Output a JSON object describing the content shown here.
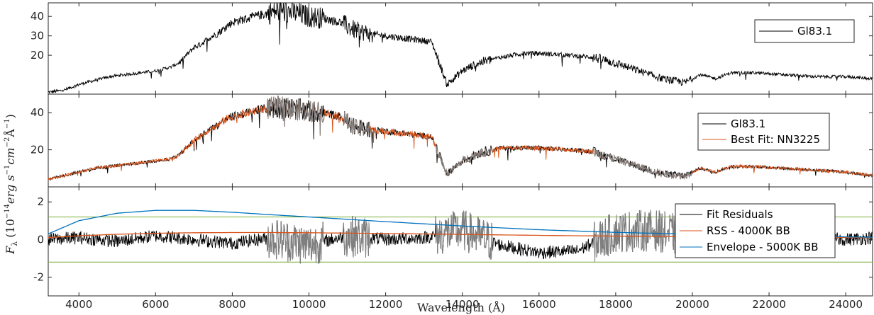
{
  "chart_data": [
    {
      "type": "line",
      "panel": "top",
      "xlim": [
        3200,
        24700
      ],
      "ylim": [
        0,
        47
      ],
      "yticks": [
        "20",
        "30",
        "40"
      ],
      "ytick_values": [
        20,
        30,
        40
      ],
      "legend_position": "top-right",
      "series": [
        {
          "name": "Gl83.1",
          "color": "#000000",
          "x": [
            3200,
            3600,
            4000,
            4400,
            4800,
            5200,
            5600,
            6000,
            6400,
            6600,
            6800,
            7000,
            7200,
            7400,
            7600,
            7800,
            8000,
            8400,
            8800,
            9200,
            9600,
            10000,
            10400,
            10800,
            11200,
            11600,
            12000,
            12400,
            12800,
            13200,
            13600,
            14000,
            14400,
            15000,
            15600,
            16000,
            16800,
            17400,
            18000,
            18600,
            19200,
            19800,
            20200,
            20600,
            21000,
            21600,
            22400,
            23200,
            24000,
            24700
          ],
          "y": [
            1,
            2,
            5,
            7,
            9,
            10,
            11,
            12,
            14,
            16,
            20,
            24,
            26,
            29,
            31,
            34,
            37,
            39,
            41,
            43,
            42,
            40,
            39,
            37,
            33,
            31,
            30,
            29,
            28,
            27,
            5,
            12,
            16,
            19,
            21,
            21,
            20,
            19,
            16,
            12,
            8,
            6,
            10,
            8,
            11,
            11,
            10,
            9,
            9,
            8
          ]
        }
      ]
    },
    {
      "type": "line",
      "panel": "middle",
      "xlim": [
        3200,
        24700
      ],
      "ylim": [
        0,
        50
      ],
      "yticks": [
        "20",
        "40"
      ],
      "ytick_values": [
        20,
        40
      ],
      "legend_position": "top-right",
      "series": [
        {
          "name": "Gl83.1",
          "color": "#000000",
          "x": [
            3200,
            3600,
            4000,
            4400,
            4800,
            5200,
            5600,
            6000,
            6400,
            6600,
            6800,
            7000,
            7200,
            7400,
            7600,
            7800,
            8000,
            8400,
            8800,
            9200,
            9600,
            10000,
            10400,
            10800,
            11200,
            11600,
            12000,
            12400,
            12800,
            13200,
            13600,
            14000,
            14400,
            15000,
            15600,
            16000,
            16800,
            17400,
            18000,
            18600,
            19200,
            19800,
            20200,
            20600,
            21000,
            21600,
            22400,
            23200,
            24000,
            24700
          ],
          "y": [
            4,
            6,
            8,
            10,
            11,
            12,
            13,
            14,
            15,
            17,
            21,
            25,
            28,
            31,
            33,
            36,
            38,
            40,
            42,
            43,
            42,
            41,
            40,
            38,
            32,
            31,
            30,
            29,
            28,
            27,
            7,
            14,
            18,
            21,
            21,
            21,
            20,
            19,
            15,
            11,
            7,
            6,
            10,
            8,
            11,
            11,
            10,
            9,
            8,
            6
          ]
        },
        {
          "name": "Best Fit: NN3225",
          "color": "#d95319",
          "x": [
            3200,
            3600,
            4000,
            4400,
            4800,
            5200,
            5600,
            6000,
            6400,
            6600,
            6800,
            7000,
            7200,
            7400,
            7600,
            7800,
            8000,
            8400,
            8800,
            9200,
            9600,
            10000,
            10400,
            10800,
            11200,
            11600,
            12000,
            12400,
            12800,
            13200,
            13600,
            14000,
            14400,
            15000,
            15600,
            16000,
            16800,
            17400,
            18000,
            18600,
            19200,
            19800,
            20200,
            20600,
            21000,
            21600,
            22400,
            23200,
            24000,
            24700
          ],
          "y": [
            4,
            6,
            8,
            10,
            11,
            12,
            13,
            14,
            15,
            17,
            21,
            25,
            28,
            31,
            33,
            36,
            38,
            40,
            42,
            43,
            42,
            41,
            40,
            38,
            32,
            31,
            30,
            29,
            28,
            27,
            7,
            14,
            18,
            21,
            21,
            21,
            20,
            19,
            15,
            11,
            7,
            6,
            10,
            8,
            11,
            11,
            10,
            9,
            8,
            6
          ]
        }
      ]
    },
    {
      "type": "line",
      "panel": "bottom",
      "xlim": [
        3200,
        24700
      ],
      "ylim": [
        -3,
        2.8
      ],
      "yticks": [
        "-2",
        "0",
        "2"
      ],
      "ytick_values": [
        -2,
        0,
        2
      ],
      "xticks": [
        "4000",
        "6000",
        "8000",
        "10000",
        "12000",
        "14000",
        "16000",
        "18000",
        "20000",
        "22000",
        "24000"
      ],
      "xtick_values": [
        4000,
        6000,
        8000,
        10000,
        12000,
        14000,
        16000,
        18000,
        20000,
        22000,
        24000
      ],
      "xlabel": "Wavelength (Å)",
      "legend_position": "right",
      "series": [
        {
          "name": "Fit Residuals",
          "color": "#000000",
          "x": [
            3200,
            4000,
            5000,
            6000,
            7000,
            8000,
            9000,
            10000,
            11000,
            12000,
            13000,
            14000,
            15000,
            16000,
            17000,
            18000,
            19000,
            20000,
            21000,
            22000,
            23000,
            24000,
            24700
          ],
          "y": [
            0,
            0.1,
            -0.1,
            0.2,
            0,
            -0.2,
            0.1,
            -0.3,
            0.2,
            0,
            0.1,
            0.5,
            -0.3,
            -0.7,
            -0.6,
            0.4,
            0.5,
            0.1,
            0,
            0.1,
            0.1,
            0,
            0.1
          ]
        },
        {
          "name": "RSS - 4000K BB",
          "color": "#d95319",
          "x": [
            3200,
            4000,
            5000,
            6000,
            7000,
            8000,
            9000,
            10000,
            12000,
            14000,
            16000,
            18000,
            20000,
            22000,
            24700
          ],
          "y": [
            0.1,
            0.2,
            0.28,
            0.33,
            0.36,
            0.37,
            0.37,
            0.36,
            0.32,
            0.27,
            0.22,
            0.18,
            0.15,
            0.12,
            0.1
          ]
        },
        {
          "name": "Envelope - 5000K BB",
          "color": "#0072bd",
          "x": [
            3200,
            4000,
            5000,
            6000,
            7000,
            8000,
            9000,
            10000,
            12000,
            14000,
            16000,
            18000,
            20000,
            22000,
            24700
          ],
          "y": [
            0.3,
            1.0,
            1.4,
            1.55,
            1.55,
            1.45,
            1.32,
            1.2,
            0.95,
            0.72,
            0.52,
            0.38,
            0.28,
            0.2,
            0.12
          ]
        }
      ],
      "reference_lines": {
        "color": "#77ac30",
        "values": [
          1.2,
          -1.2
        ]
      }
    }
  ],
  "ylabel": "F_λ (10^{-14} erg s^{-1} cm^{-2} Å^{-1})",
  "ylabel_parts": {
    "base": "F",
    "sub": "λ",
    "open": "(10",
    "exp1": "−14",
    "erg": "erg s",
    "exp2": "−1",
    "cm": "cm",
    "exp3": "−2",
    "ang": "Å",
    "exp4": "−1",
    "close": ")"
  },
  "colors": {
    "residual_gray": "#808080",
    "axis": "#262626",
    "band": "#999999"
  }
}
